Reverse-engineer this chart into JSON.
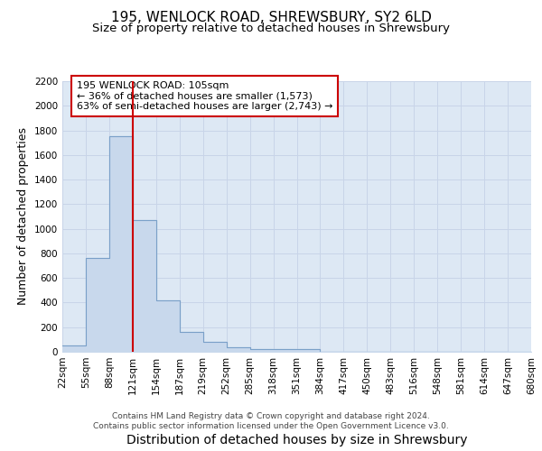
{
  "title1": "195, WENLOCK ROAD, SHREWSBURY, SY2 6LD",
  "title2": "Size of property relative to detached houses in Shrewsbury",
  "xlabel": "Distribution of detached houses by size in Shrewsbury",
  "ylabel": "Number of detached properties",
  "bar_values": [
    55,
    760,
    1750,
    1070,
    420,
    160,
    80,
    40,
    25,
    20,
    20,
    0,
    0,
    0,
    0,
    0,
    0,
    0,
    0,
    0
  ],
  "bar_labels": [
    "22sqm",
    "55sqm",
    "88sqm",
    "121sqm",
    "154sqm",
    "187sqm",
    "219sqm",
    "252sqm",
    "285sqm",
    "318sqm",
    "351sqm",
    "384sqm",
    "417sqm",
    "450sqm",
    "483sqm",
    "516sqm",
    "548sqm",
    "581sqm",
    "614sqm",
    "647sqm",
    "680sqm"
  ],
  "bar_fill_color": "#c8d8ec",
  "bar_edge_color": "#7aa0c8",
  "vline_x": 2,
  "vline_color": "#cc0000",
  "annotation_text": "195 WENLOCK ROAD: 105sqm\n← 36% of detached houses are smaller (1,573)\n63% of semi-detached houses are larger (2,743) →",
  "annotation_box_color": "white",
  "annotation_box_edge": "#cc0000",
  "ylim": [
    0,
    2200
  ],
  "yticks": [
    0,
    200,
    400,
    600,
    800,
    1000,
    1200,
    1400,
    1600,
    1800,
    2000,
    2200
  ],
  "grid_color": "#c8d4e8",
  "background_color": "#dde8f4",
  "fig_background": "#ffffff",
  "footnote": "Contains HM Land Registry data © Crown copyright and database right 2024.\nContains public sector information licensed under the Open Government Licence v3.0.",
  "title1_fontsize": 11,
  "title2_fontsize": 9.5,
  "xlabel_fontsize": 10,
  "ylabel_fontsize": 9,
  "tick_fontsize": 7.5,
  "annotation_fontsize": 8,
  "footnote_fontsize": 6.5
}
